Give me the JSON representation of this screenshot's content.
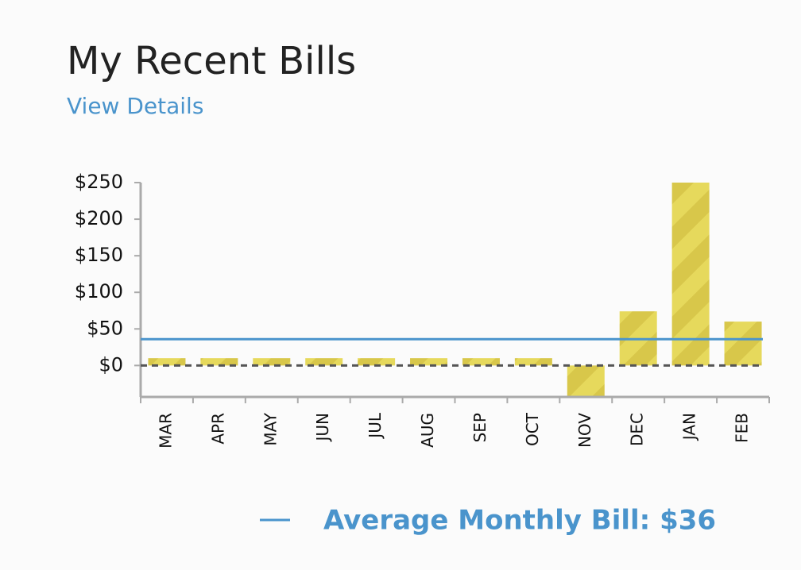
{
  "header": {
    "title": "My Recent Bills",
    "link": "View Details"
  },
  "chart_data": {
    "type": "bar",
    "categories": [
      "MAR",
      "APR",
      "MAY",
      "JUN",
      "JUL",
      "AUG",
      "SEP",
      "OCT",
      "NOV",
      "DEC",
      "JAN",
      "FEB"
    ],
    "values": [
      10,
      10,
      10,
      10,
      10,
      10,
      10,
      10,
      -43,
      74,
      250,
      60
    ],
    "color": "#e6d95c",
    "ylim": [
      -43,
      250
    ],
    "yticks": [
      {
        "value": 0,
        "label": "$0"
      },
      {
        "value": 50,
        "label": "$50"
      },
      {
        "value": 100,
        "label": "$100"
      },
      {
        "value": 150,
        "label": "$150"
      },
      {
        "value": 200,
        "label": "$200"
      },
      {
        "value": 250,
        "label": "$250"
      }
    ],
    "average": 36,
    "average_color": "#4a94cc",
    "legend": "Average Monthly Bill: $36"
  }
}
